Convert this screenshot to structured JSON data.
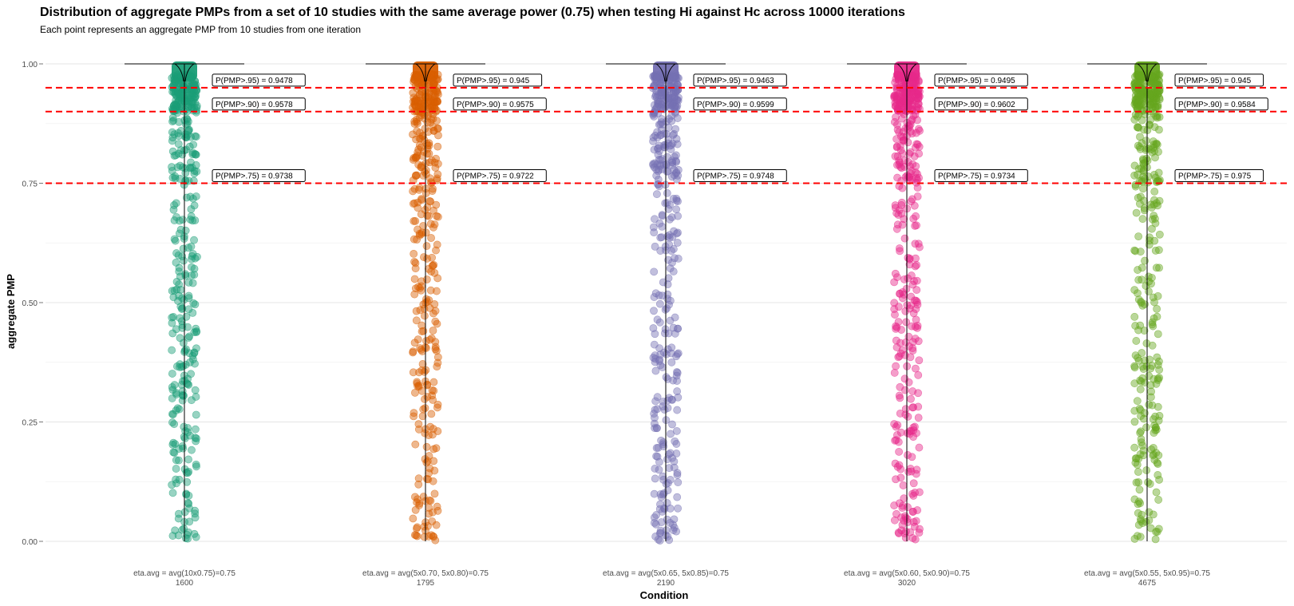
{
  "chart_data": {
    "type": "scatter",
    "title": "Distribution of aggregate PMPs from a set of 10 studies with the same average power (0.75) when testing Hi against Hc across 10000 iterations",
    "subtitle": "Each point represents an aggregate PMP from 10 studies from one iteration",
    "xlabel": "Condition",
    "ylabel": "aggregate PMP",
    "ylim": [
      0,
      1
    ],
    "y_ticks": [
      "0.00",
      "0.25",
      "0.50",
      "0.75",
      "1.00"
    ],
    "grid": true,
    "legend": "none",
    "hlines": [
      {
        "y": 0.95,
        "color": "#ff0000",
        "style": "dashed"
      },
      {
        "y": 0.9,
        "color": "#ff0000",
        "style": "dashed"
      },
      {
        "y": 0.75,
        "color": "#ff0000",
        "style": "dashed"
      }
    ],
    "categories": [
      {
        "label_line1": "eta.avg = avg(10x0.75)=0.75",
        "label_line2": "1600",
        "color": "#1b9e77",
        "annotations": [
          "P(PMP>.95) = 0.9478",
          "P(PMP>.90) = 0.9578",
          "P(PMP>.75) = 0.9738"
        ]
      },
      {
        "label_line1": "eta.avg = avg(5x0.70, 5x0.80)=0.75",
        "label_line2": "1795",
        "color": "#d95f02",
        "annotations": [
          "P(PMP>.95) = 0.945",
          "P(PMP>.90) = 0.9575",
          "P(PMP>.75) = 0.9722"
        ]
      },
      {
        "label_line1": "eta.avg = avg(5x0.65, 5x0.85)=0.75",
        "label_line2": "2190",
        "color": "#7570b3",
        "annotations": [
          "P(PMP>.95) = 0.9463",
          "P(PMP>.90) = 0.9599",
          "P(PMP>.75) = 0.9748"
        ]
      },
      {
        "label_line1": "eta.avg = avg(5x0.60, 5x0.90)=0.75",
        "label_line2": "3020",
        "color": "#e7298a",
        "annotations": [
          "P(PMP>.95) = 0.9495",
          "P(PMP>.90) = 0.9602",
          "P(PMP>.75) = 0.9734"
        ]
      },
      {
        "label_line1": "eta.avg = avg(5x0.55, 5x0.95)=0.75",
        "label_line2": "4675",
        "color": "#66a61e",
        "annotations": [
          "P(PMP>.95) = 0.945",
          "P(PMP>.90) = 0.9584",
          "P(PMP>.75) = 0.975"
        ]
      }
    ]
  }
}
